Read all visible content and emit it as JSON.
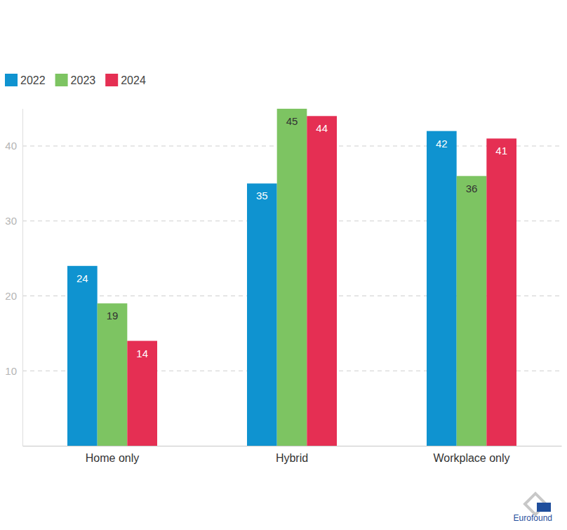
{
  "chart_data": {
    "type": "bar",
    "categories": [
      "Home only",
      "Hybrid",
      "Workplace only"
    ],
    "series": [
      {
        "name": "2022",
        "color": "#0f93d0",
        "values": [
          24,
          35,
          42
        ]
      },
      {
        "name": "2023",
        "color": "#7dc462",
        "values": [
          19,
          45,
          36
        ]
      },
      {
        "name": "2024",
        "color": "#e52f53",
        "values": [
          14,
          44,
          41
        ]
      }
    ],
    "ylim": [
      0,
      45
    ],
    "yticks": [
      10,
      20,
      30,
      40
    ],
    "grid": true,
    "legend": "top-left",
    "data_labels": true,
    "annotations": [
      "Eurofound"
    ]
  }
}
